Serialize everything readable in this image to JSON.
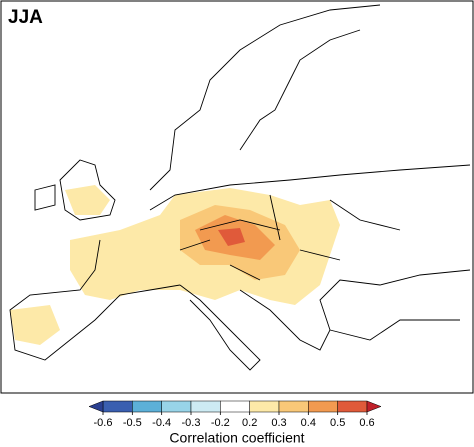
{
  "title": "JJA",
  "colorbar": {
    "label": "Correlation coefficient",
    "ticks": [
      -0.6,
      -0.5,
      -0.4,
      -0.3,
      -0.2,
      0.2,
      0.3,
      0.4,
      0.5,
      0.6
    ],
    "colors": [
      "#3a5fb0",
      "#5cb0d8",
      "#98d4e8",
      "#cdebf3",
      "#ffffff",
      "#fde9a8",
      "#f9c878",
      "#f29a50",
      "#e05a3a"
    ],
    "under_color": "#2a3f90",
    "over_color": "#c0202a"
  }
}
